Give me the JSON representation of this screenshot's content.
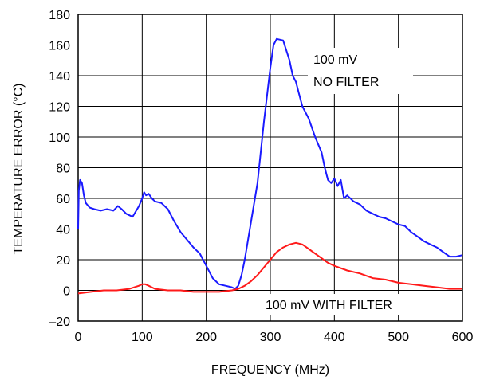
{
  "chart_data": {
    "type": "line",
    "title": "",
    "xlabel": "FREQUENCY (MHz)",
    "ylabel": "TEMPERATURE ERROR (°C)",
    "xlim": [
      0,
      600
    ],
    "ylim": [
      -20,
      180
    ],
    "x_ticks": [
      "0",
      "100",
      "200",
      "300",
      "400",
      "500",
      "600"
    ],
    "y_ticks": [
      "180",
      "160",
      "140",
      "120",
      "100",
      "80",
      "60",
      "40",
      "20",
      "0",
      "–20"
    ],
    "grid": true,
    "annotations": {
      "no_filter_line1": "100 mV",
      "no_filter_line2": "NO FILTER",
      "with_filter": "100 mV WITH FILTER"
    },
    "series": [
      {
        "name": "100 mV NO FILTER",
        "color": "#1a1aff",
        "x": [
          0,
          1,
          3,
          6,
          9,
          12,
          18,
          25,
          35,
          45,
          55,
          62,
          68,
          75,
          85,
          95,
          100,
          103,
          106,
          110,
          115,
          120,
          130,
          140,
          150,
          160,
          170,
          180,
          190,
          200,
          210,
          220,
          230,
          240,
          245,
          250,
          255,
          260,
          270,
          280,
          290,
          300,
          305,
          310,
          320,
          330,
          335,
          340,
          345,
          350,
          360,
          370,
          380,
          385,
          390,
          395,
          400,
          405,
          410,
          415,
          420,
          430,
          440,
          450,
          460,
          470,
          480,
          490,
          500,
          510,
          520,
          530,
          540,
          550,
          560,
          570,
          580,
          590,
          600
        ],
        "y": [
          40,
          65,
          72,
          70,
          62,
          57,
          54,
          53,
          52,
          53,
          52,
          55,
          53,
          50,
          48,
          55,
          60,
          64,
          62,
          63,
          60,
          58,
          57,
          53,
          45,
          38,
          33,
          28,
          24,
          16,
          8,
          4,
          3,
          2,
          1,
          3,
          10,
          20,
          45,
          70,
          110,
          145,
          160,
          164,
          163,
          150,
          140,
          136,
          128,
          120,
          112,
          100,
          90,
          80,
          72,
          70,
          73,
          68,
          72,
          60,
          62,
          58,
          56,
          52,
          50,
          48,
          47,
          45,
          43,
          42,
          38,
          35,
          32,
          30,
          28,
          25,
          22,
          22,
          23
        ]
      },
      {
        "name": "100 mV WITH FILTER",
        "color": "#ff1a1a",
        "x": [
          0,
          20,
          40,
          60,
          80,
          95,
          100,
          105,
          110,
          120,
          140,
          160,
          180,
          200,
          220,
          240,
          250,
          260,
          270,
          280,
          290,
          300,
          310,
          320,
          330,
          340,
          350,
          360,
          370,
          380,
          390,
          400,
          420,
          440,
          460,
          480,
          500,
          520,
          540,
          560,
          580,
          600
        ],
        "y": [
          -2,
          -1,
          0,
          0,
          1,
          3,
          4,
          4,
          3,
          1,
          0,
          0,
          -1,
          -1,
          -1,
          0,
          1,
          3,
          6,
          10,
          15,
          20,
          25,
          28,
          30,
          31,
          30,
          27,
          24,
          21,
          18,
          16,
          13,
          11,
          8,
          7,
          5,
          4,
          3,
          2,
          1,
          1
        ]
      }
    ]
  }
}
